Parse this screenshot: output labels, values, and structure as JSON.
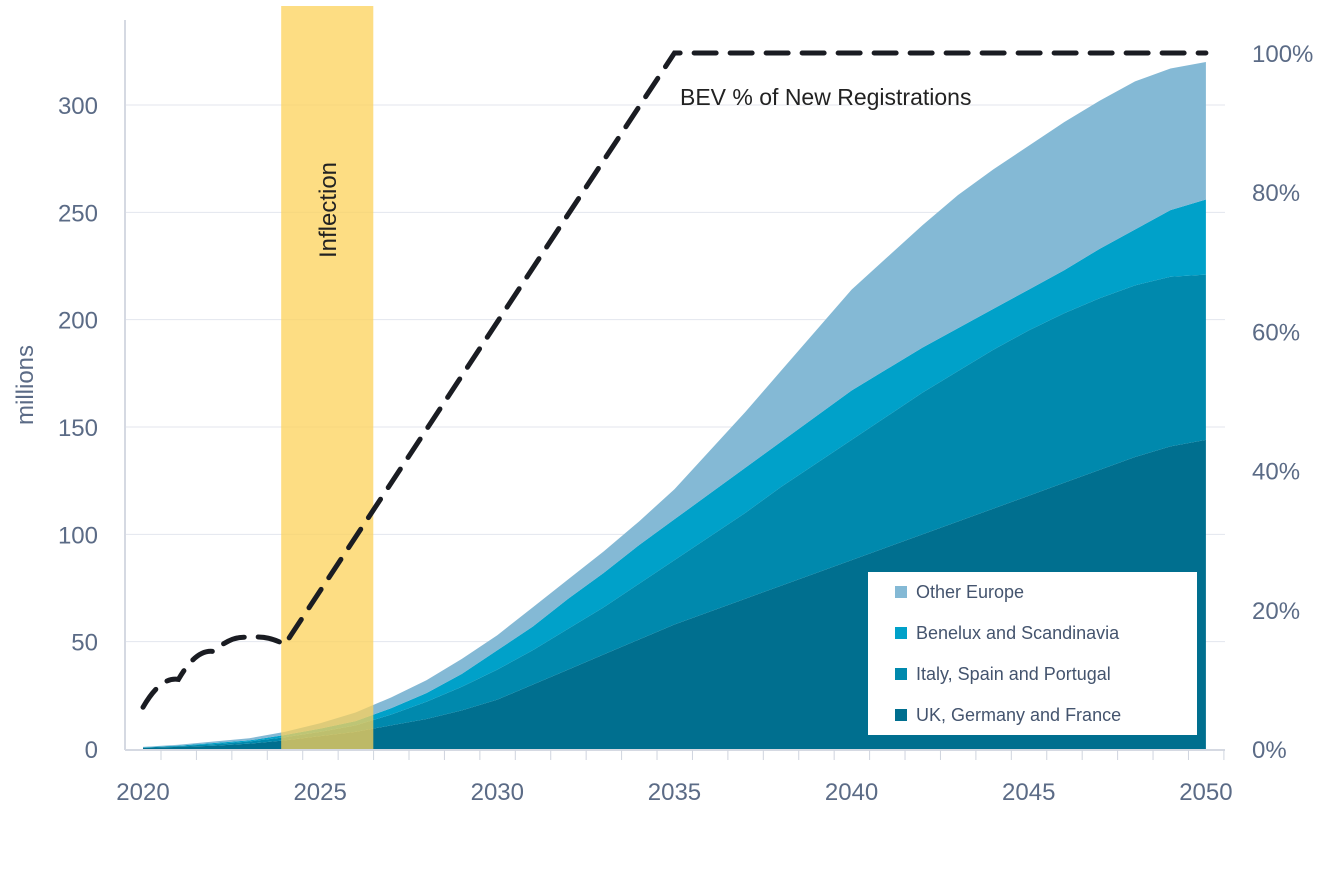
{
  "chart_data": {
    "type": "area",
    "title": "",
    "ylabel": "millions",
    "y2label": "",
    "ylim": [
      0,
      320
    ],
    "y2lim": [
      0,
      1
    ],
    "x": [
      2020,
      2021,
      2022,
      2023,
      2024,
      2025,
      2026,
      2027,
      2028,
      2029,
      2030,
      2031,
      2032,
      2033,
      2034,
      2035,
      2036,
      2037,
      2038,
      2039,
      2040,
      2041,
      2042,
      2043,
      2044,
      2045,
      2046,
      2047,
      2048,
      2049,
      2050
    ],
    "x_ticks": [
      "2020",
      "2025",
      "2030",
      "2035",
      "2040",
      "2045",
      "2050"
    ],
    "y_ticks": [
      "0",
      "50",
      "100",
      "150",
      "200",
      "250",
      "300"
    ],
    "y2_ticks": [
      "0%",
      "20%",
      "40%",
      "60%",
      "80%",
      "100%"
    ],
    "series": [
      {
        "name": "UK, Germany and France",
        "color": "#006f8f",
        "values": [
          0.5,
          1,
          1.5,
          2.5,
          4,
          6,
          8,
          11,
          14,
          18,
          23,
          30,
          37,
          44,
          51,
          58,
          64,
          70,
          76,
          82,
          88,
          94,
          100,
          106,
          112,
          118,
          124,
          130,
          136,
          141,
          144
        ]
      },
      {
        "name": "Italy, Spain and Portugal",
        "color": "#0089ad",
        "values": [
          0.2,
          0.4,
          0.8,
          1,
          1.5,
          2,
          3,
          5,
          8,
          11,
          14,
          16,
          19,
          22,
          26,
          30,
          35,
          40,
          46,
          51,
          56,
          61,
          66,
          70,
          74,
          77,
          79,
          80,
          80,
          79,
          77
        ]
      },
      {
        "name": "Benelux and Scandinavia",
        "color": "#00a1c9",
        "values": [
          0.1,
          0.2,
          0.5,
          0.5,
          1,
          1.5,
          2,
          3,
          4,
          6,
          9,
          11,
          14,
          16,
          18,
          19,
          20,
          21,
          21,
          22,
          23,
          22,
          21,
          20,
          19,
          19,
          20,
          23,
          26,
          31,
          35
        ]
      },
      {
        "name": "Other Europe",
        "color": "#84b9d5",
        "values": [
          0.2,
          0.4,
          0.7,
          1,
          1.5,
          2.5,
          4,
          5,
          6,
          7,
          7,
          9,
          9,
          10,
          11,
          14,
          20,
          26,
          33,
          40,
          47,
          52,
          57,
          62,
          65,
          67,
          69,
          69,
          69,
          66,
          64
        ]
      }
    ],
    "line": {
      "name": "BEV % of New Registrations",
      "axis": "right",
      "style": "dashed",
      "x": [
        2020,
        2021,
        2022,
        2023,
        2024,
        2035,
        2050
      ],
      "values": [
        0.06,
        0.1,
        0.14,
        0.16,
        0.15,
        1.0,
        1.0
      ]
    },
    "annotations": [
      {
        "text": "Inflection",
        "type": "band",
        "x_range": [
          2023.9,
          2026.5
        ],
        "color": "#fcd25a"
      }
    ],
    "legend_placement": "bottom-right",
    "grid": true
  }
}
